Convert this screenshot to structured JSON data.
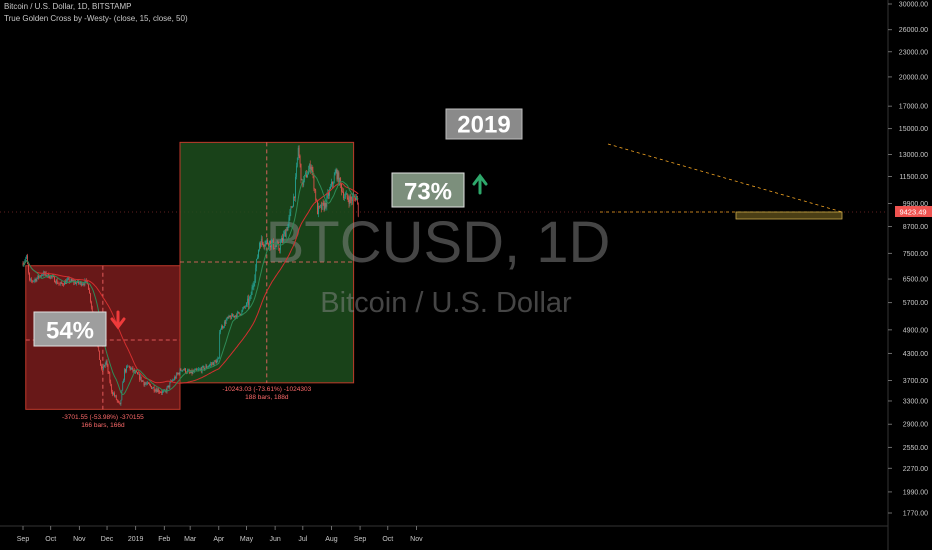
{
  "header": {
    "symbol_line": "Bitcoin / U.S. Dollar, 1D, BITSTAMP",
    "indicator_line": "True Golden Cross by -Westy- (close, 15, close, 50)"
  },
  "watermark": {
    "ticker": "BTCUSD, 1D",
    "name": "Bitcoin / U.S. Dollar"
  },
  "annotations": {
    "year_box": "2019",
    "down_percent": "54%",
    "up_percent": "73%",
    "down_measure_line1": "-3701.55 (-53.98%) -370155",
    "down_measure_line2": "166 bars, 166d",
    "up_measure_line1": "-10243.03 (-73.61%) -1024303",
    "up_measure_line2": "188 bars, 188d",
    "last_price": "9423.49"
  },
  "colors": {
    "background": "#000000",
    "up_candle": "#26a69a",
    "down_candle": "#ef5350",
    "red_zone": "#7a1c1c",
    "green_zone": "#1d4d1d",
    "ma_fast": "#2e8b57",
    "ma_slow": "#d32f2f",
    "projection": "#f5a623"
  },
  "chart_data": {
    "type": "candlestick",
    "title": "Bitcoin / U.S. Dollar, 1D, BITSTAMP",
    "y_scale": "log",
    "y_ticks": [
      30000,
      26000,
      23000,
      20000,
      17000,
      15000,
      13000,
      11500,
      9900,
      8700,
      7500,
      6500,
      5700,
      4900,
      4300,
      3700,
      3300,
      2900,
      2550,
      2270,
      1990,
      1770
    ],
    "x_ticks": [
      "Sep",
      "Oct",
      "Nov",
      "Dec",
      "2019",
      "Feb",
      "Mar",
      "Apr",
      "May",
      "Jun",
      "Jul",
      "Aug",
      "Sep",
      "Oct",
      "Nov"
    ],
    "grid": false,
    "series": [
      {
        "name": "close",
        "values": [
          [
            "2018-09-01",
            7100
          ],
          [
            "2018-09-05",
            7350
          ],
          [
            "2018-09-08",
            6400
          ],
          [
            "2018-09-15",
            6500
          ],
          [
            "2018-09-22",
            6700
          ],
          [
            "2018-10-01",
            6600
          ],
          [
            "2018-10-11",
            6300
          ],
          [
            "2018-10-20",
            6450
          ],
          [
            "2018-11-01",
            6350
          ],
          [
            "2018-11-10",
            6400
          ],
          [
            "2018-11-14",
            5600
          ],
          [
            "2018-11-20",
            4600
          ],
          [
            "2018-11-25",
            3900
          ],
          [
            "2018-11-30",
            4100
          ],
          [
            "2018-12-06",
            3500
          ],
          [
            "2018-12-15",
            3200
          ],
          [
            "2018-12-20",
            3900
          ],
          [
            "2018-12-24",
            4000
          ],
          [
            "2019-01-01",
            3850
          ],
          [
            "2019-01-10",
            3650
          ],
          [
            "2019-01-20",
            3550
          ],
          [
            "2019-02-01",
            3450
          ],
          [
            "2019-02-08",
            3650
          ],
          [
            "2019-02-20",
            3950
          ],
          [
            "2019-03-01",
            3850
          ],
          [
            "2019-03-15",
            3950
          ],
          [
            "2019-04-01",
            4150
          ],
          [
            "2019-04-02",
            4900
          ],
          [
            "2019-04-10",
            5200
          ],
          [
            "2019-04-25",
            5400
          ],
          [
            "2019-05-05",
            5800
          ],
          [
            "2019-05-12",
            7100
          ],
          [
            "2019-05-15",
            8000
          ],
          [
            "2019-05-25",
            8000
          ],
          [
            "2019-06-05",
            7700
          ],
          [
            "2019-06-15",
            8800
          ],
          [
            "2019-06-22",
            10500
          ],
          [
            "2019-06-26",
            13500
          ],
          [
            "2019-06-30",
            11000
          ],
          [
            "2019-07-10",
            12300
          ],
          [
            "2019-07-17",
            9500
          ],
          [
            "2019-07-25",
            9800
          ],
          [
            "2019-08-06",
            11800
          ],
          [
            "2019-08-15",
            10300
          ],
          [
            "2019-08-22",
            10100
          ],
          [
            "2019-08-28",
            10300
          ],
          [
            "2019-08-30",
            9423.49
          ]
        ]
      }
    ],
    "measure_zones": [
      {
        "label": "54%",
        "direction": "down",
        "start": "2018-09-04",
        "end": "2019-02-18",
        "low": 3150,
        "high": 7000,
        "change": -3701.55,
        "change_pct": -53.98,
        "bars": 166
      },
      {
        "label": "73%",
        "direction": "up",
        "start": "2019-02-18",
        "end": "2019-08-25",
        "low": 3650,
        "high": 13900,
        "change": -10243.03,
        "change_pct": -73.61,
        "bars": 188
      }
    ],
    "last_price": 9423.49
  }
}
